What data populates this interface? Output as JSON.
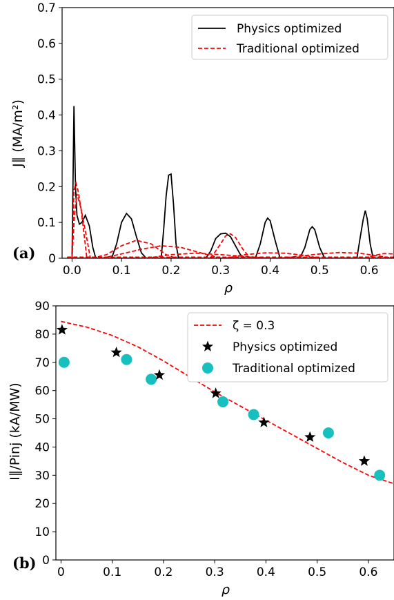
{
  "chart_data": [
    {
      "type": "line",
      "panel_label": "(a)",
      "xlabel": "ρ",
      "ylabel": "J∥ (MA/m²)",
      "xlim": [
        -0.02,
        0.65
      ],
      "ylim": [
        0,
        0.7
      ],
      "xticks": [
        "0.0",
        "0.1",
        "0.2",
        "0.3",
        "0.4",
        "0.5",
        "0.6"
      ],
      "yticks": [
        "0",
        "0.1",
        "0.2",
        "0.3",
        "0.4",
        "0.5",
        "0.6",
        "0.7"
      ],
      "legend_position": "top-right",
      "legend_entries": [
        "Physics optimized",
        "Traditional optimized"
      ],
      "colors": {
        "physics": "#000000",
        "traditional": "#ff0000"
      },
      "series": [
        {
          "name": "Physics optimized",
          "style": "solid",
          "profiles": [
            {
              "x": [
                0.0,
                0.004,
                0.007,
                0.01,
                0.015,
                0.02,
                0.027,
                0.035,
                0.042,
                0.047,
                0.05
              ],
              "y": [
                0.0,
                0.425,
                0.2,
                0.12,
                0.095,
                0.1,
                0.12,
                0.09,
                0.03,
                0.005,
                0.0
              ]
            },
            {
              "x": [
                0.08,
                0.09,
                0.1,
                0.11,
                0.12,
                0.13,
                0.14,
                0.15
              ],
              "y": [
                0.0,
                0.04,
                0.1,
                0.125,
                0.11,
                0.06,
                0.015,
                0.0
              ]
            },
            {
              "x": [
                0.18,
                0.185,
                0.19,
                0.195,
                0.2,
                0.205,
                0.21,
                0.215
              ],
              "y": [
                0.0,
                0.08,
                0.175,
                0.232,
                0.235,
                0.15,
                0.04,
                0.0
              ]
            },
            {
              "x": [
                0.27,
                0.28,
                0.29,
                0.3,
                0.31,
                0.32,
                0.33,
                0.34,
                0.35
              ],
              "y": [
                0.0,
                0.02,
                0.055,
                0.068,
                0.07,
                0.06,
                0.035,
                0.01,
                0.0
              ]
            },
            {
              "x": [
                0.37,
                0.38,
                0.39,
                0.395,
                0.4,
                0.41,
                0.42
              ],
              "y": [
                0.0,
                0.04,
                0.1,
                0.112,
                0.105,
                0.05,
                0.0
              ]
            },
            {
              "x": [
                0.46,
                0.47,
                0.48,
                0.485,
                0.49,
                0.5,
                0.51
              ],
              "y": [
                0.0,
                0.03,
                0.08,
                0.088,
                0.08,
                0.03,
                0.0
              ]
            },
            {
              "x": [
                0.575,
                0.582,
                0.588,
                0.592,
                0.596,
                0.602,
                0.608
              ],
              "y": [
                0.0,
                0.06,
                0.11,
                0.133,
                0.11,
                0.04,
                0.0
              ]
            },
            {
              "x": [
                -0.01,
                0.65
              ],
              "y": [
                0.0,
                0.0
              ]
            }
          ]
        },
        {
          "name": "Traditional optimized",
          "style": "dashed",
          "profiles": [
            {
              "x": [
                0.0,
                0.004,
                0.008,
                0.012,
                0.018,
                0.025,
                0.032,
                0.037
              ],
              "y": [
                0.0,
                0.19,
                0.21,
                0.19,
                0.14,
                0.09,
                0.04,
                0.0
              ]
            },
            {
              "x": [
                0.0,
                0.005,
                0.01,
                0.018,
                0.025,
                0.03
              ],
              "y": [
                0.0,
                0.12,
                0.18,
                0.14,
                0.06,
                0.0
              ]
            },
            {
              "x": [
                0.04,
                0.07,
                0.1,
                0.13,
                0.16,
                0.19,
                0.21
              ],
              "y": [
                0.0,
                0.01,
                0.035,
                0.05,
                0.04,
                0.01,
                0.0
              ]
            },
            {
              "x": [
                0.06,
                0.1,
                0.14,
                0.18,
                0.22,
                0.26,
                0.3
              ],
              "y": [
                0.0,
                0.012,
                0.025,
                0.035,
                0.03,
                0.015,
                0.0
              ]
            },
            {
              "x": [
                0.15,
                0.2,
                0.25,
                0.3,
                0.35,
                0.4
              ],
              "y": [
                0.0,
                0.01,
                0.014,
                0.01,
                0.005,
                0.0
              ]
            },
            {
              "x": [
                0.28,
                0.3,
                0.31,
                0.32,
                0.33,
                0.345,
                0.36
              ],
              "y": [
                0.0,
                0.04,
                0.062,
                0.068,
                0.058,
                0.025,
                0.0
              ]
            },
            {
              "x": [
                0.31,
                0.35,
                0.39,
                0.43,
                0.47,
                0.5
              ],
              "y": [
                0.0,
                0.01,
                0.015,
                0.014,
                0.008,
                0.0
              ]
            },
            {
              "x": [
                0.42,
                0.46,
                0.5,
                0.54,
                0.58,
                0.62,
                0.65
              ],
              "y": [
                0.0,
                0.006,
                0.012,
                0.016,
                0.014,
                0.006,
                0.0
              ]
            },
            {
              "x": [
                0.59,
                0.61,
                0.63,
                0.65
              ],
              "y": [
                0.0,
                0.008,
                0.013,
                0.012
              ]
            },
            {
              "x": [
                -0.01,
                0.65
              ],
              "y": [
                0.003,
                0.003
              ]
            }
          ]
        }
      ]
    },
    {
      "type": "scatter",
      "panel_label": "(b)",
      "xlabel": "ρ",
      "ylabel": "I∥/Pinj (kA/MW)",
      "xlim": [
        -0.01,
        0.65
      ],
      "ylim": [
        0,
        90
      ],
      "xticks": [
        "0",
        "0.1",
        "0.2",
        "0.3",
        "0.4",
        "0.5",
        "0.6"
      ],
      "yticks": [
        "0",
        "10",
        "20",
        "30",
        "40",
        "50",
        "60",
        "70",
        "80",
        "90"
      ],
      "legend_position": "top-right",
      "legend_entries": [
        "ζ = 0.3",
        "Physics optimized",
        "Traditional optimized"
      ],
      "colors": {
        "zeta_line": "#ff0000",
        "physics": "#000000",
        "traditional": "#17bfbf"
      },
      "series": [
        {
          "name": "ζ = 0.3",
          "style": "dashed",
          "x": [
            0.0,
            0.05,
            0.1,
            0.15,
            0.2,
            0.25,
            0.3,
            0.35,
            0.4,
            0.45,
            0.5,
            0.55,
            0.6,
            0.65
          ],
          "y": [
            84.5,
            82.5,
            79.5,
            75.5,
            70.5,
            65.0,
            59.5,
            54.5,
            49.5,
            44.5,
            39.5,
            34.5,
            30.0,
            27.0
          ]
        },
        {
          "name": "Physics optimized",
          "marker": "star",
          "x": [
            0.002,
            0.108,
            0.192,
            0.302,
            0.396,
            0.486,
            0.592
          ],
          "y": [
            81.5,
            73.5,
            65.5,
            59.0,
            48.7,
            43.5,
            35.0
          ]
        },
        {
          "name": "Traditional optimized",
          "marker": "circle",
          "x": [
            0.006,
            0.128,
            0.176,
            0.316,
            0.376,
            0.522,
            0.622
          ],
          "y": [
            70.0,
            71.0,
            64.0,
            56.0,
            51.5,
            45.0,
            30.0
          ]
        }
      ]
    }
  ]
}
